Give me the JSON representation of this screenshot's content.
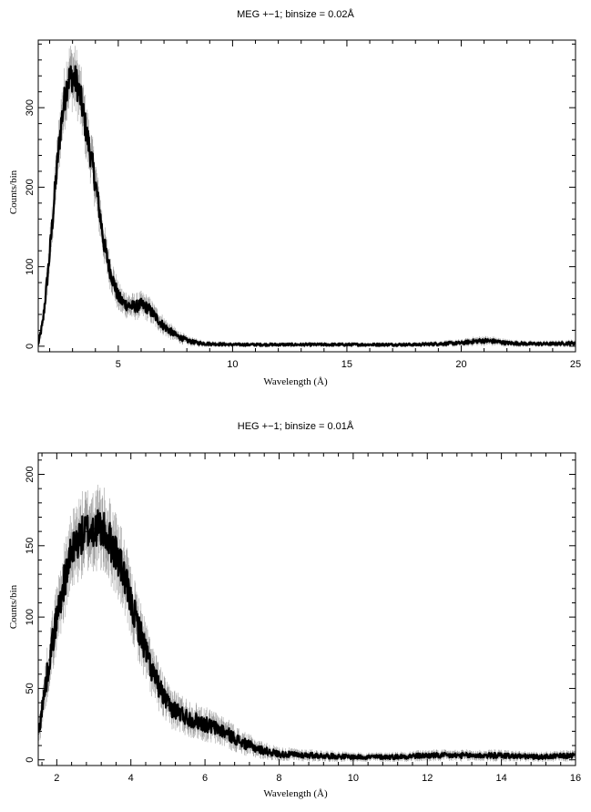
{
  "chart_data": [
    {
      "type": "line",
      "title": "MEG +−1; binsize = 0.02Å",
      "xlabel": "Wavelength (Å)",
      "ylabel": "Counts/bin",
      "xlim": [
        1.5,
        25
      ],
      "ylim": [
        -7,
        385
      ],
      "x_ticks": [
        5,
        10,
        15,
        20,
        25
      ],
      "y_ticks": [
        0,
        100,
        200,
        300
      ],
      "grid": false,
      "series": [
        {
          "x": [
            1.5,
            1.7,
            1.9,
            2.1,
            2.3,
            2.5,
            2.7,
            2.8,
            3.0,
            3.2,
            3.4,
            3.6,
            3.8,
            4.0,
            4.2,
            4.4,
            4.6,
            4.8,
            5.0,
            5.2,
            5.4,
            5.6,
            5.8,
            6.0,
            6.3,
            6.6,
            7.0,
            7.5,
            8.0,
            8.5,
            9.0,
            10,
            12,
            14,
            16,
            18,
            19,
            20,
            20.5,
            21,
            21.5,
            22,
            23,
            24,
            25
          ],
          "y": [
            2,
            30,
            85,
            150,
            220,
            280,
            320,
            335,
            340,
            330,
            305,
            270,
            240,
            205,
            165,
            125,
            100,
            80,
            62,
            55,
            52,
            50,
            50,
            52,
            48,
            38,
            25,
            14,
            7,
            4,
            3,
            2,
            2,
            2,
            2,
            2,
            3,
            4,
            6,
            7,
            6,
            4,
            3,
            3,
            4
          ]
        }
      ]
    },
    {
      "type": "line",
      "title": "HEG +−1; binsize = 0.01Å",
      "xlabel": "Wavelength (Å)",
      "ylabel": "Counts/bin",
      "xlim": [
        1.5,
        16
      ],
      "ylim": [
        -4,
        215
      ],
      "x_ticks": [
        2,
        4,
        6,
        8,
        10,
        12,
        14,
        16
      ],
      "y_ticks": [
        0,
        50,
        100,
        150,
        200
      ],
      "grid": false,
      "series": [
        {
          "x": [
            1.5,
            1.6,
            1.8,
            2.0,
            2.2,
            2.4,
            2.6,
            2.8,
            3.0,
            3.2,
            3.4,
            3.6,
            3.8,
            4.0,
            4.3,
            4.6,
            5.0,
            5.5,
            6.0,
            6.5,
            7.0,
            7.5,
            8.0,
            9.0,
            10,
            11,
            12,
            12.8,
            13.5,
            14,
            15,
            16
          ],
          "y": [
            18,
            35,
            70,
            100,
            125,
            145,
            155,
            160,
            162,
            162,
            155,
            145,
            130,
            110,
            85,
            60,
            38,
            30,
            25,
            20,
            12,
            7,
            4,
            3,
            2,
            2,
            3,
            3,
            3,
            3,
            2,
            3
          ]
        }
      ]
    }
  ]
}
